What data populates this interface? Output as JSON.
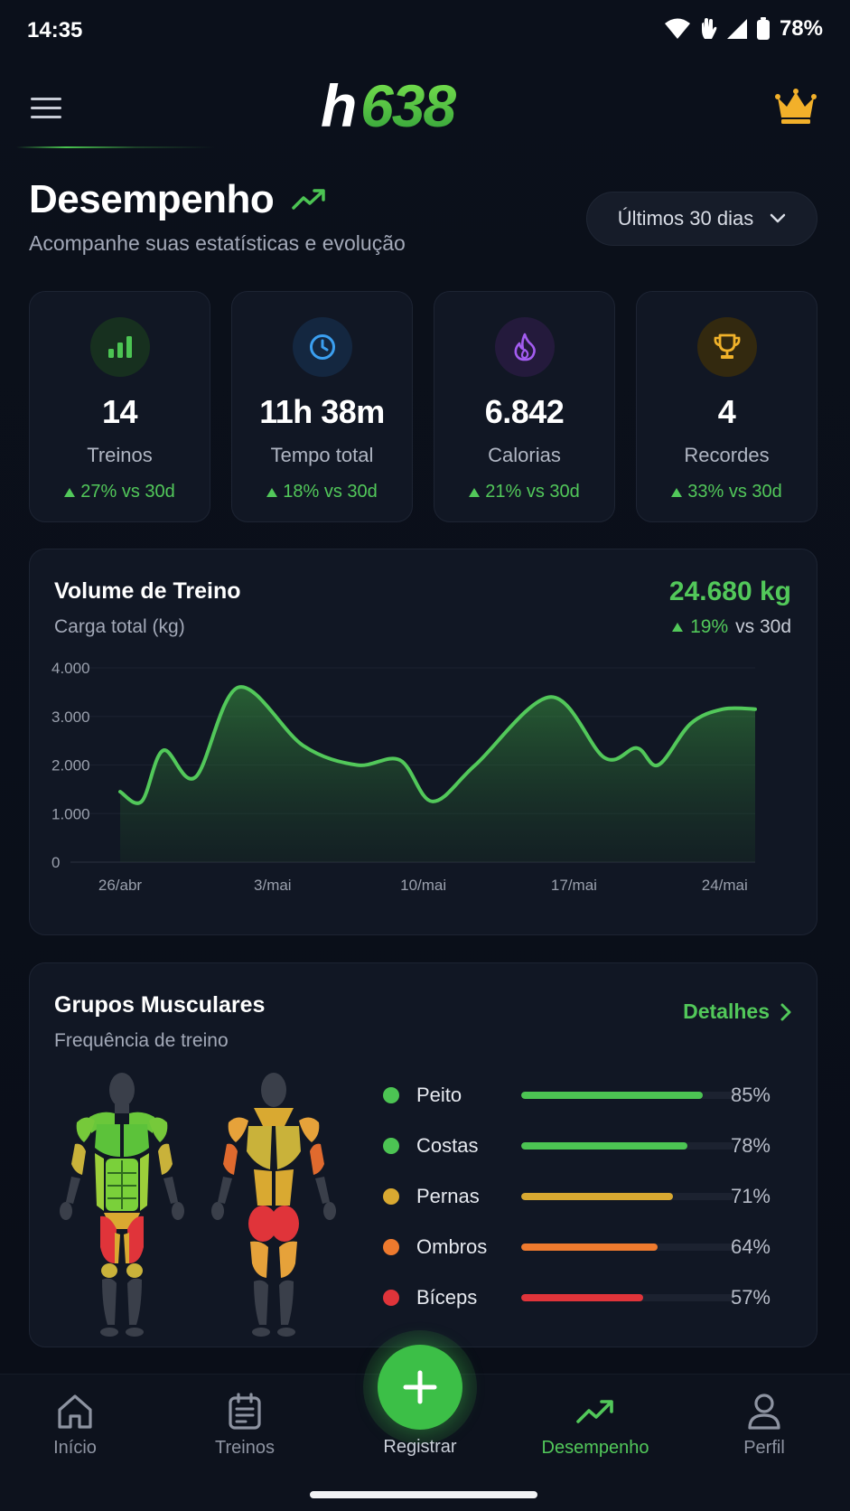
{
  "status_bar": {
    "time": "14:35",
    "battery": "78%"
  },
  "header": {
    "logo_text": "h638"
  },
  "title": {
    "text": "Desempenho",
    "subtitle": "Acompanhe suas estatísticas e evolução"
  },
  "period": {
    "label": "Últimos 30 dias"
  },
  "stats": [
    {
      "icon": "bar-chart-icon",
      "value": "14",
      "label": "Treinos",
      "change": "27% vs 30d",
      "color": "#4cc453"
    },
    {
      "icon": "clock-icon",
      "value": "11h 38m",
      "label": "Tempo total",
      "change": "18% vs 30d",
      "color": "#3b9ff0"
    },
    {
      "icon": "flame-icon",
      "value": "6.842",
      "label": "Calorias",
      "change": "21% vs 30d",
      "color": "#a35cf0"
    },
    {
      "icon": "trophy-icon",
      "value": "4",
      "label": "Recordes",
      "change": "33% vs 30d",
      "color": "#f0b22a"
    }
  ],
  "volume": {
    "title": "Volume de Treino",
    "subtitle": "Carga total (kg)",
    "total": "24.680 kg",
    "change_pct": "19%",
    "change_suffix": "vs 30d"
  },
  "chart_data": {
    "type": "area",
    "title": "Volume de Treino",
    "ylabel": "Carga total (kg)",
    "ylim": [
      0,
      4000
    ],
    "y_ticks": [
      "4.000",
      "3.000",
      "2.000",
      "1.000",
      "0"
    ],
    "y_tick_values": [
      4000,
      3000,
      2000,
      1000,
      0
    ],
    "x_ticks": [
      "26/abr",
      "3/mai",
      "10/mai",
      "17/mai",
      "24/mai"
    ],
    "x_tick_days": [
      0,
      7,
      14,
      21,
      28
    ],
    "x_range_days": [
      0,
      29.5
    ],
    "series": [
      {
        "x": [
          0,
          1,
          2,
          3.5,
          5.5,
          8.5,
          11,
          13,
          14.5,
          16.5,
          20,
          22.5,
          24,
          25,
          26.5,
          28,
          29.5
        ],
        "values": [
          1450,
          1250,
          2300,
          1750,
          3600,
          2400,
          2000,
          2100,
          1250,
          2000,
          3400,
          2150,
          2350,
          2000,
          2850,
          3150,
          3150
        ]
      }
    ],
    "grid": true,
    "color": "#52c85a"
  },
  "muscles": {
    "title": "Grupos Musculares",
    "subtitle": "Frequência de treino",
    "details_label": "Detalhes",
    "items": [
      {
        "name": "Peito",
        "pct_label": "85%",
        "pct": 0.85,
        "color": "#4cc453"
      },
      {
        "name": "Costas",
        "pct_label": "78%",
        "pct": 0.78,
        "color": "#4cc453"
      },
      {
        "name": "Pernas",
        "pct_label": "71%",
        "pct": 0.71,
        "color": "#d9a931"
      },
      {
        "name": "Ombros",
        "pct_label": "64%",
        "pct": 0.64,
        "color": "#ee7a2e"
      },
      {
        "name": "Bíceps",
        "pct_label": "57%",
        "pct": 0.57,
        "color": "#e0343a"
      }
    ]
  },
  "nav": {
    "items": [
      {
        "label": "Início",
        "icon": "home-icon"
      },
      {
        "label": "Treinos",
        "icon": "clipboard-icon"
      },
      {
        "label": "Registrar",
        "icon": "plus-icon"
      },
      {
        "label": "Desempenho",
        "icon": "trend-up-icon"
      },
      {
        "label": "Perfil",
        "icon": "user-icon"
      }
    ]
  }
}
